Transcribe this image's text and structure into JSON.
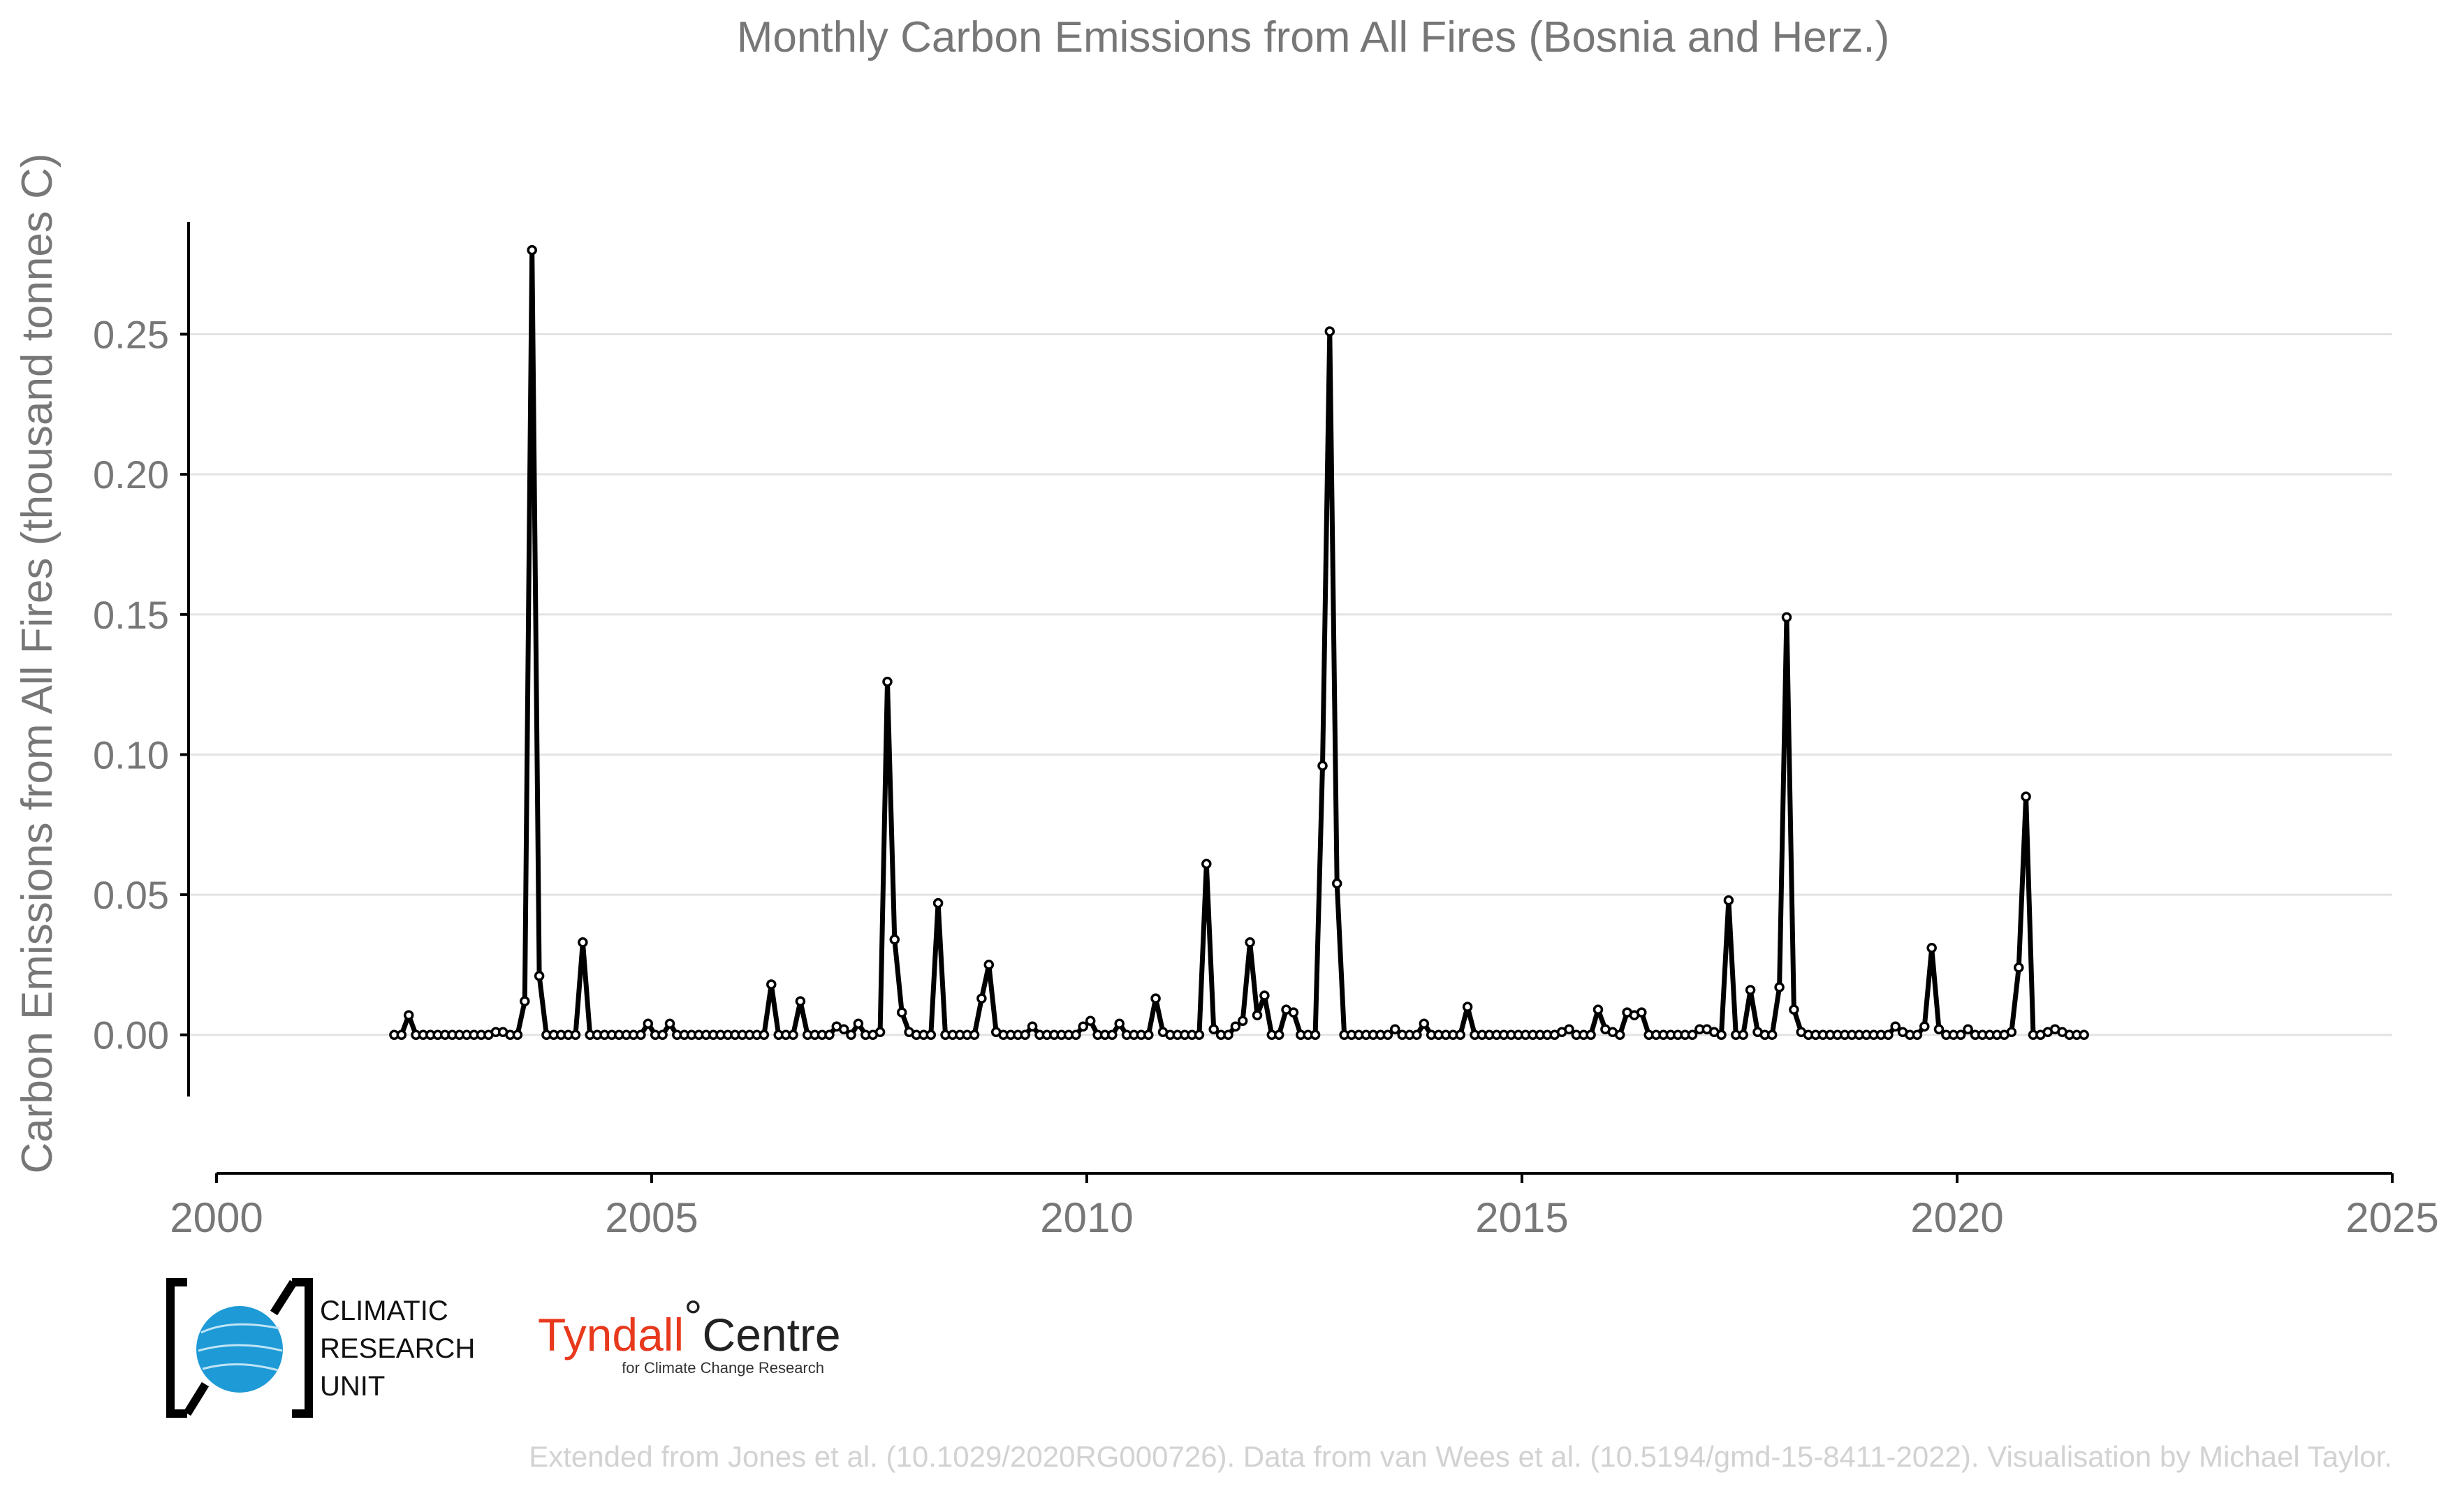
{
  "chart_data": {
    "type": "line",
    "title": "Monthly Carbon Emissions from All Fires (Bosnia and Herz.)",
    "ylabel": "Carbon Emissions from All Fires (thousand tonnes C)",
    "xlabel": "",
    "xlim": [
      2000,
      2025
    ],
    "ylim": [
      -0.022,
      0.29
    ],
    "x_ticks": [
      "2000",
      "2005",
      "2010",
      "2015",
      "2020",
      "2025"
    ],
    "y_ticks": [
      "0.00",
      "0.05",
      "0.10",
      "0.15",
      "0.20",
      "0.25"
    ],
    "grid": "horizontal",
    "series_color": "#000000",
    "x_start": "2002-01",
    "x_step": "1 month",
    "values": [
      0,
      0,
      0.007,
      0,
      0,
      0,
      0,
      0,
      0,
      0,
      0,
      0,
      0,
      0,
      0.001,
      0.001,
      0,
      0,
      0.012,
      0.28,
      0.021,
      0,
      0,
      0,
      0,
      0,
      0.033,
      0,
      0,
      0,
      0,
      0,
      0,
      0,
      0,
      0.004,
      0,
      0,
      0.004,
      0,
      0,
      0,
      0,
      0,
      0,
      0,
      0,
      0,
      0,
      0,
      0,
      0,
      0.018,
      0,
      0,
      0,
      0.012,
      0,
      0,
      0,
      0,
      0.003,
      0.002,
      0,
      0.004,
      0,
      0,
      0.001,
      0.126,
      0.034,
      0.008,
      0.001,
      0,
      0,
      0,
      0.047,
      0,
      0,
      0,
      0,
      0,
      0.013,
      0.025,
      0.001,
      0,
      0,
      0,
      0,
      0.003,
      0,
      0,
      0,
      0,
      0,
      0,
      0.003,
      0.005,
      0,
      0,
      0,
      0.004,
      0,
      0,
      0,
      0,
      0.013,
      0.001,
      0,
      0,
      0,
      0,
      0,
      0.061,
      0.002,
      0,
      0,
      0.003,
      0.005,
      0.033,
      0.007,
      0.014,
      0,
      0,
      0.009,
      0.008,
      0,
      0,
      0,
      0.096,
      0.251,
      0.054,
      0,
      0,
      0,
      0,
      0,
      0,
      0,
      0.002,
      0,
      0,
      0,
      0.004,
      0,
      0,
      0,
      0,
      0,
      0.01,
      0,
      0,
      0,
      0,
      0,
      0,
      0,
      0,
      0,
      0,
      0,
      0,
      0.001,
      0.002,
      0,
      0,
      0,
      0.009,
      0.002,
      0.001,
      0,
      0.008,
      0.007,
      0.008,
      0,
      0,
      0,
      0,
      0,
      0,
      0,
      0.002,
      0.002,
      0.001,
      0,
      0.048,
      0,
      0,
      0.016,
      0.001,
      0,
      0,
      0.017,
      0.149,
      0.009,
      0.001,
      0,
      0,
      0,
      0,
      0,
      0,
      0,
      0,
      0,
      0,
      0,
      0,
      0.003,
      0.001,
      0,
      0,
      0.003,
      0.031,
      0.002,
      0,
      0,
      0,
      0.002,
      0,
      0,
      0,
      0,
      0,
      0.001,
      0.024,
      0.085,
      0,
      0,
      0.001,
      0.002,
      0.001,
      0,
      0,
      0
    ]
  },
  "logos": {
    "cru_lines": [
      "CLIMATIC",
      "RESEARCH",
      "UNIT"
    ],
    "tyndall_name_a": "Tyndall",
    "tyndall_degree": "°",
    "tyndall_name_b": "Centre",
    "tyndall_subtitle": "for Climate Change Research"
  },
  "footer": {
    "credit": "Extended from Jones et al. (10.1029/2020RG000726). Data from van Wees et al. (10.5194/gmd-15-8411-2022). Visualisation by Michael Taylor."
  }
}
